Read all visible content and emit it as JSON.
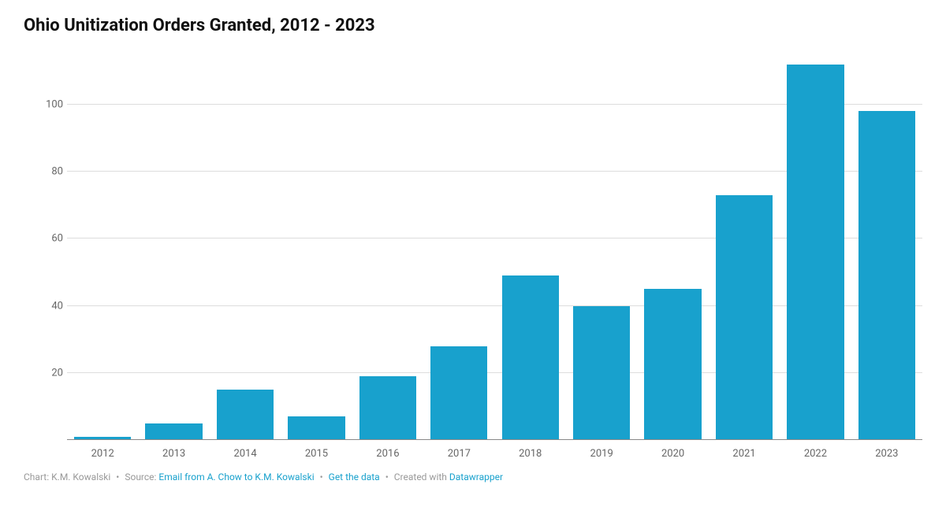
{
  "chart": {
    "type": "bar",
    "title": "Ohio Unitization Orders Granted, 2012 - 2023",
    "title_fontsize": 22,
    "title_fontweight": 700,
    "title_color": "#111111",
    "categories": [
      "2012",
      "2013",
      "2014",
      "2015",
      "2016",
      "2017",
      "2018",
      "2019",
      "2020",
      "2021",
      "2022",
      "2023"
    ],
    "values": [
      1,
      5,
      15,
      7,
      19,
      28,
      49,
      40,
      45,
      73,
      112,
      98
    ],
    "bar_color": "#18a1cd",
    "background_color": "#ffffff",
    "grid_color": "#dddddd",
    "baseline_color": "#888888",
    "ymin": 0,
    "ymax": 115,
    "yticks": [
      20,
      40,
      60,
      80,
      100
    ],
    "axis_label_color": "#666666",
    "axis_fontsize": 13,
    "bar_width_ratio": 0.8
  },
  "footer": {
    "chart_by_label": "Chart: ",
    "chart_by": "K.M. Kowalski",
    "source_label": "Source: ",
    "source_link": "Email from A. Chow to K.M. Kowalski",
    "get_data": "Get the data",
    "created_with_label": "Created with ",
    "created_with": "Datawrapper",
    "separator": "•",
    "text_color": "#999999",
    "link_color": "#18a1cd",
    "fontsize": 12
  }
}
